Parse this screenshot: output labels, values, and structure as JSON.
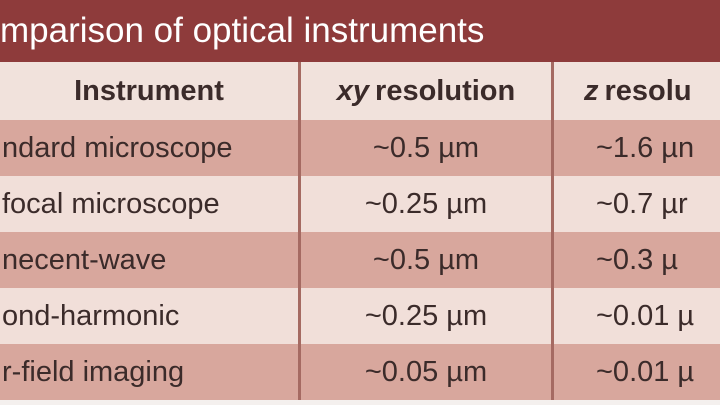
{
  "title": "mparison of optical instruments",
  "header": {
    "instrument": "Instrument",
    "xy": {
      "em": "xy",
      "text": "resolution"
    },
    "z": {
      "em": "z",
      "text": "resolu"
    }
  },
  "table": {
    "rows": [
      [
        "ndard microscope",
        "~0.5 µm",
        "~1.6 µn"
      ],
      [
        "focal microscope",
        "~0.25 µm",
        "~0.7 µr"
      ],
      [
        "necent-wave",
        "~0.5 µm",
        "~0.3 µ"
      ],
      [
        "ond-harmonic",
        "~0.25 µm",
        "~0.01 µ"
      ],
      [
        "r-field imaging",
        "~0.05 µm",
        "~0.01 µ"
      ]
    ]
  }
}
